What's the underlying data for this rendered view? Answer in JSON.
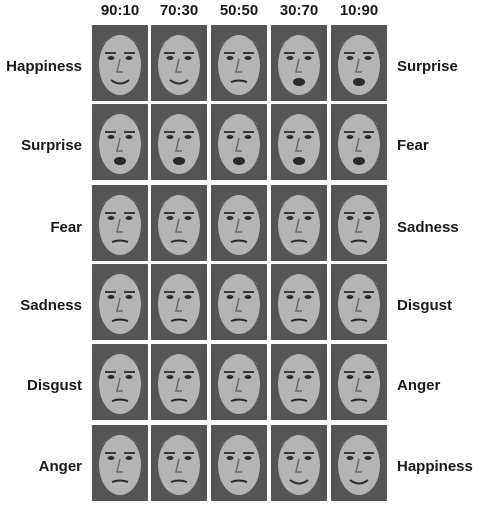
{
  "columns": [
    "90:10",
    "70:30",
    "50:50",
    "30:70",
    "10:90"
  ],
  "rows": [
    {
      "left": "Happiness",
      "right": "Surprise"
    },
    {
      "left": "Surprise",
      "right": "Fear"
    },
    {
      "left": "Fear",
      "right": "Sadness"
    },
    {
      "left": "Sadness",
      "right": "Disgust"
    },
    {
      "left": "Disgust",
      "right": "Anger"
    },
    {
      "left": "Anger",
      "right": "Happiness"
    }
  ]
}
